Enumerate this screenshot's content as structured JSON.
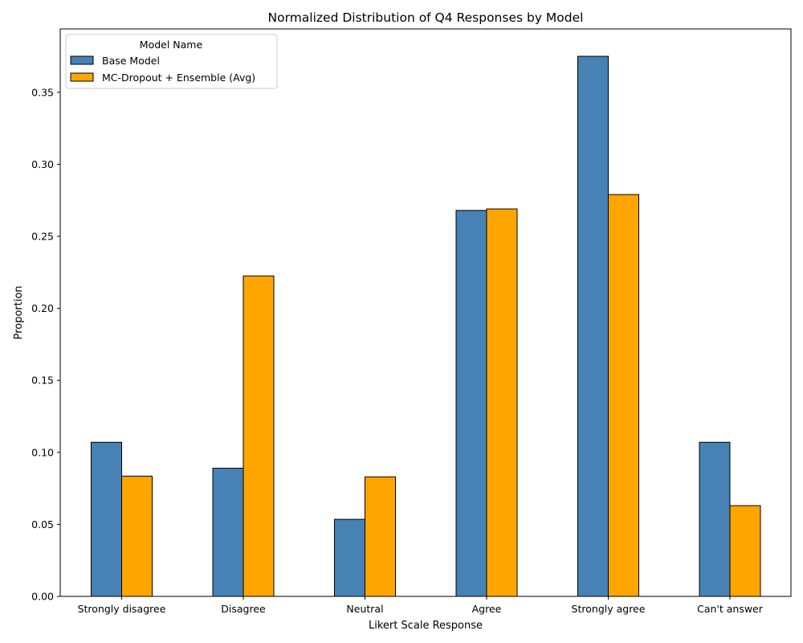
{
  "chart_data": {
    "type": "bar",
    "title": "Normalized Distribution of Q4 Responses by Model",
    "xlabel": "Likert Scale Response",
    "ylabel": "Proportion",
    "categories": [
      "Strongly disagree",
      "Disagree",
      "Neutral",
      "Agree",
      "Strongly agree",
      "Can't answer"
    ],
    "series": [
      {
        "name": "Base Model",
        "color": "#4682b4",
        "values": [
          0.107,
          0.089,
          0.0535,
          0.268,
          0.375,
          0.107
        ]
      },
      {
        "name": "MC-Dropout + Ensemble (Avg)",
        "color": "#ffa500",
        "values": [
          0.0835,
          0.2225,
          0.083,
          0.269,
          0.279,
          0.063
        ]
      }
    ],
    "ylim": [
      0,
      0.394
    ],
    "yticks": [
      "0.00",
      "0.05",
      "0.10",
      "0.15",
      "0.20",
      "0.25",
      "0.30",
      "0.35"
    ],
    "grid": false,
    "legend": {
      "title": "Model Name",
      "placement": "top-left"
    }
  }
}
